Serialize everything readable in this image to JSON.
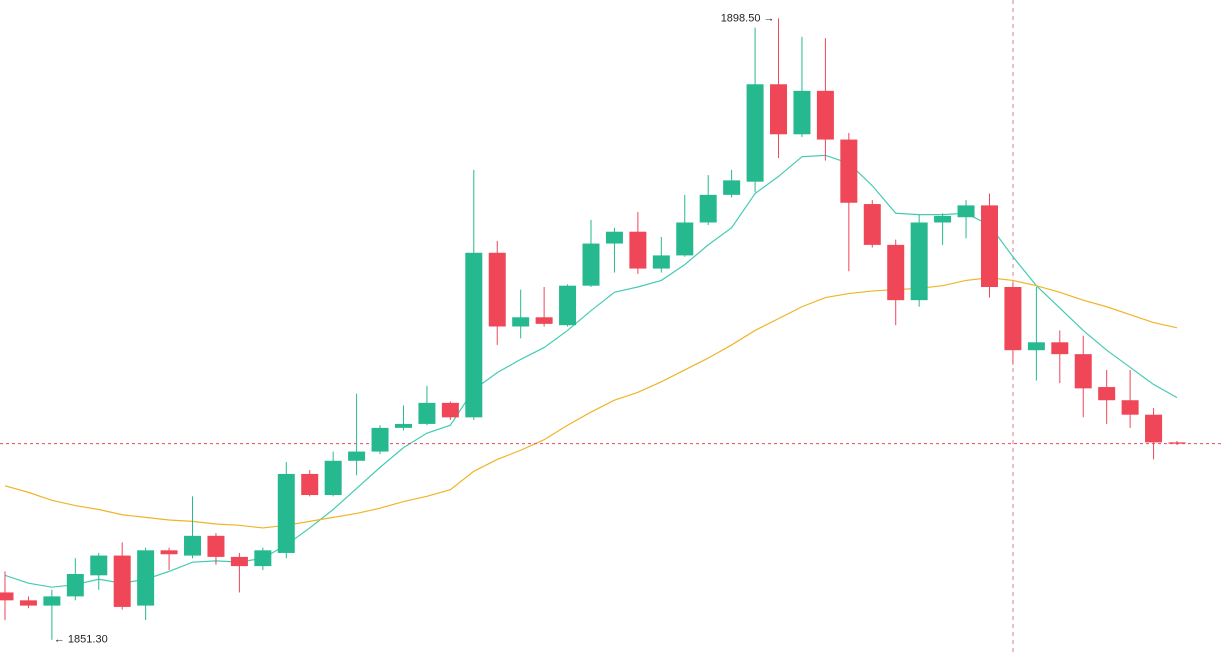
{
  "chart_data": {
    "type": "candlestick",
    "ylim": [
      1850.3,
      1899.9
    ],
    "up_color": "#26b98f",
    "down_color": "#ef4658",
    "open": [
      1854.9,
      1854.3,
      1853.9,
      1854.6,
      1856.2,
      1857.7,
      1853.9,
      1858.1,
      1857.7,
      1859.2,
      1857.6,
      1856.9,
      1857.9,
      1863.9,
      1862.3,
      1864.9,
      1865.6,
      1867.4,
      1867.7,
      1869.3,
      1868.2,
      1880.7,
      1875.1,
      1875.8,
      1875.2,
      1878.2,
      1881.4,
      1882.3,
      1879.5,
      1880.5,
      1883.0,
      1885.1,
      1886.1,
      1893.5,
      1889.7,
      1893.0,
      1889.3,
      1884.4,
      1881.3,
      1877.1,
      1883.0,
      1883.4,
      1884.3,
      1878.1,
      1873.3,
      1873.9,
      1873.0,
      1870.5,
      1869.5,
      1868.4,
      1866.3
    ],
    "high": [
      1856.5,
      1854.6,
      1855.1,
      1857.5,
      1857.9,
      1858.7,
      1858.3,
      1858.3,
      1862.2,
      1859.4,
      1857.9,
      1858.3,
      1864.8,
      1864.2,
      1865.6,
      1870.0,
      1867.6,
      1869.1,
      1870.6,
      1869.4,
      1887.0,
      1881.6,
      1877.9,
      1878.1,
      1878.3,
      1883.2,
      1882.6,
      1883.8,
      1881.9,
      1885.1,
      1886.6,
      1887.0,
      1897.8,
      1898.5,
      1897.1,
      1897.0,
      1889.8,
      1884.7,
      1881.7,
      1883.6,
      1883.7,
      1884.7,
      1885.2,
      1878.4,
      1878.1,
      1874.8,
      1874.4,
      1871.8,
      1871.8,
      1868.9,
      1866.4
    ],
    "low": [
      1852.8,
      1853.7,
      1851.3,
      1854.3,
      1855.1,
      1853.6,
      1852.8,
      1856.6,
      1857.5,
      1857.0,
      1854.9,
      1856.6,
      1857.5,
      1862.2,
      1862.2,
      1863.8,
      1865.4,
      1867.2,
      1867.6,
      1868.0,
      1868.0,
      1873.7,
      1874.2,
      1875.1,
      1875.1,
      1878.1,
      1879.2,
      1879.1,
      1879.2,
      1880.4,
      1882.8,
      1884.9,
      1885.3,
      1887.9,
      1889.5,
      1887.7,
      1879.3,
      1881.1,
      1875.2,
      1876.6,
      1881.3,
      1881.8,
      1877.3,
      1872.2,
      1871.0,
      1870.8,
      1868.2,
      1867.7,
      1867.4,
      1865.0,
      1866.1
    ],
    "close": [
      1854.3,
      1853.9,
      1854.6,
      1856.3,
      1857.7,
      1853.8,
      1858.1,
      1857.8,
      1859.2,
      1857.6,
      1856.9,
      1858.1,
      1863.9,
      1862.3,
      1864.9,
      1865.6,
      1867.4,
      1867.7,
      1869.3,
      1868.2,
      1880.7,
      1875.1,
      1875.8,
      1875.3,
      1878.2,
      1881.4,
      1882.3,
      1879.5,
      1880.5,
      1883.0,
      1885.1,
      1886.2,
      1893.5,
      1889.7,
      1893.0,
      1889.3,
      1884.5,
      1881.3,
      1877.1,
      1883.0,
      1883.5,
      1884.3,
      1878.1,
      1873.3,
      1873.9,
      1873.0,
      1870.4,
      1869.5,
      1868.4,
      1866.3,
      1866.2
    ],
    "lines": [
      {
        "color": "#45cbb5",
        "values": [
          1856.2,
          1855.6,
          1855.3,
          1855.5,
          1855.9,
          1855.6,
          1855.9,
          1856.5,
          1857.2,
          1857.3,
          1857.2,
          1857.5,
          1858.5,
          1859.8,
          1861.2,
          1862.8,
          1864.4,
          1865.9,
          1867.0,
          1867.6,
          1870.3,
          1871.6,
          1872.6,
          1873.5,
          1874.8,
          1876.3,
          1877.7,
          1878.1,
          1878.6,
          1879.8,
          1881.3,
          1882.6,
          1885.2,
          1886.5,
          1888.0,
          1888.1,
          1887.5,
          1885.8,
          1883.7,
          1883.6,
          1883.6,
          1883.7,
          1882.8,
          1880.4,
          1878.2,
          1876.5,
          1874.8,
          1873.3,
          1872.0,
          1870.7,
          1869.7
        ]
      },
      {
        "color": "#f0b429",
        "values": [
          1863.0,
          1862.5,
          1861.9,
          1861.5,
          1861.2,
          1860.8,
          1860.6,
          1860.4,
          1860.3,
          1860.1,
          1860.0,
          1859.8,
          1860.0,
          1860.3,
          1860.6,
          1860.9,
          1861.3,
          1861.8,
          1862.2,
          1862.7,
          1864.1,
          1865.0,
          1865.7,
          1866.5,
          1867.6,
          1868.6,
          1869.5,
          1870.1,
          1870.9,
          1871.8,
          1872.7,
          1873.7,
          1874.8,
          1875.7,
          1876.6,
          1877.3,
          1877.6,
          1877.8,
          1877.9,
          1878.0,
          1878.2,
          1878.6,
          1878.8,
          1878.6,
          1878.2,
          1877.7,
          1877.1,
          1876.6,
          1876.0,
          1875.4,
          1875.0
        ]
      }
    ],
    "high_label": "1898.50 →",
    "low_label": "← 1851.30"
  }
}
